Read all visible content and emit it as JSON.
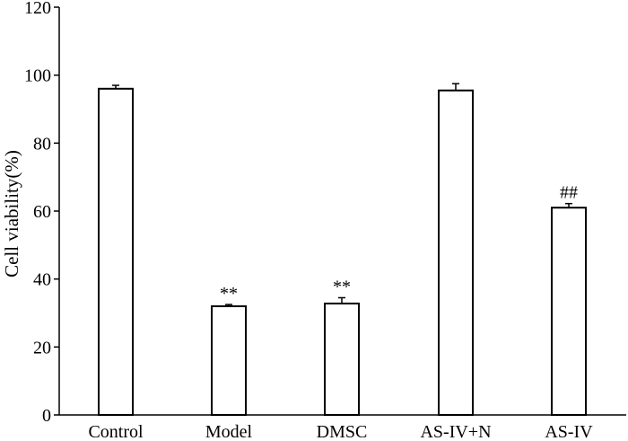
{
  "chart_data": {
    "type": "bar",
    "title": "",
    "xlabel": "",
    "ylabel": "Cell viability(%)",
    "ylim": [
      0,
      120
    ],
    "yticks": [
      0,
      20,
      40,
      60,
      80,
      100,
      120
    ],
    "categories": [
      "Control",
      "Model",
      "DMSC",
      "AS-IV+N",
      "AS-IV"
    ],
    "values": [
      96,
      32,
      32.8,
      95.5,
      61
    ],
    "errors": [
      1,
      0.5,
      1.7,
      2,
      1.2
    ],
    "annotations": [
      "",
      "**",
      "**",
      "",
      "##"
    ],
    "grid": false,
    "legend": "none",
    "bar_fill": "#ffffff",
    "bar_stroke": "#000000"
  }
}
